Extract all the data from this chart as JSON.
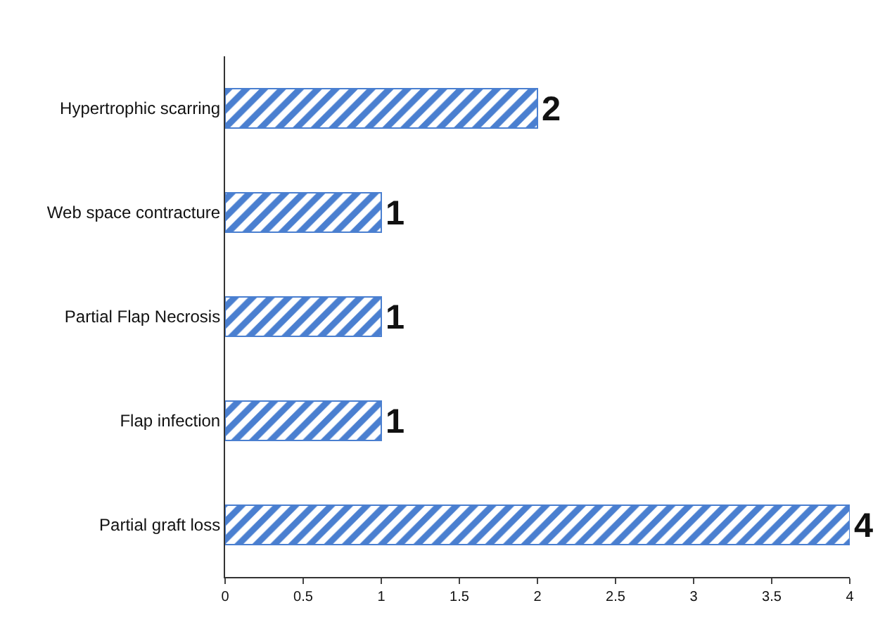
{
  "chart_data": {
    "type": "bar",
    "orientation": "horizontal",
    "categories": [
      "Hypertrophic scarring",
      "Web space contracture",
      "Partial Flap Necrosis",
      "Flap infection",
      "Partial graft loss"
    ],
    "values": [
      2,
      1,
      1,
      1,
      4
    ],
    "color": "#4a7fd0",
    "data_labels": true,
    "xlim": [
      0,
      4
    ],
    "xticks": [
      0,
      0.5,
      1,
      1.5,
      2,
      2.5,
      3,
      3.5,
      4
    ],
    "grid": false,
    "legend": false
  }
}
